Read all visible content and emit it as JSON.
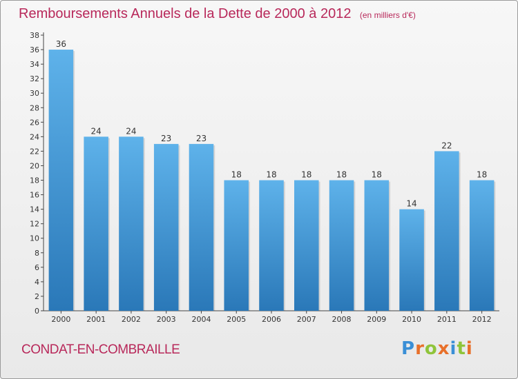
{
  "colors": {
    "accent": "#b8285a",
    "bar_top": "#5eb2ea",
    "bar_bottom": "#2a78b8",
    "axis": "#444444",
    "grid": "#cfcfcf"
  },
  "commune": "CONDAT-EN-COMBRAILLE",
  "logo": {
    "letters": [
      {
        "ch": "P",
        "color": "#3a8fd6"
      },
      {
        "ch": "r",
        "color": "#e8702a"
      },
      {
        "ch": "o",
        "color": "#8fc43a"
      },
      {
        "ch": "x",
        "color": "#e8702a"
      },
      {
        "ch": "i",
        "color": "#3a8fd6"
      },
      {
        "ch": "t",
        "color": "#8fc43a"
      },
      {
        "ch": "i",
        "color": "#e8702a"
      }
    ]
  },
  "chart_data": {
    "type": "bar",
    "title": "Remboursements Annuels de la Dette de 2000 à 2012",
    "subtitle": "(en milliers d'€)",
    "xlabel": "",
    "ylabel": "",
    "categories": [
      "2000",
      "2001",
      "2002",
      "2003",
      "2004",
      "2005",
      "2006",
      "2007",
      "2008",
      "2009",
      "2010",
      "2011",
      "2012"
    ],
    "values": [
      36,
      24,
      24,
      23,
      23,
      18,
      18,
      18,
      18,
      18,
      14,
      22,
      18
    ],
    "ylim": [
      0,
      38
    ],
    "yticks": [
      0,
      2,
      4,
      6,
      8,
      10,
      12,
      14,
      16,
      18,
      20,
      22,
      24,
      26,
      28,
      30,
      32,
      34,
      36,
      38
    ],
    "grid": false,
    "legend": "none"
  }
}
